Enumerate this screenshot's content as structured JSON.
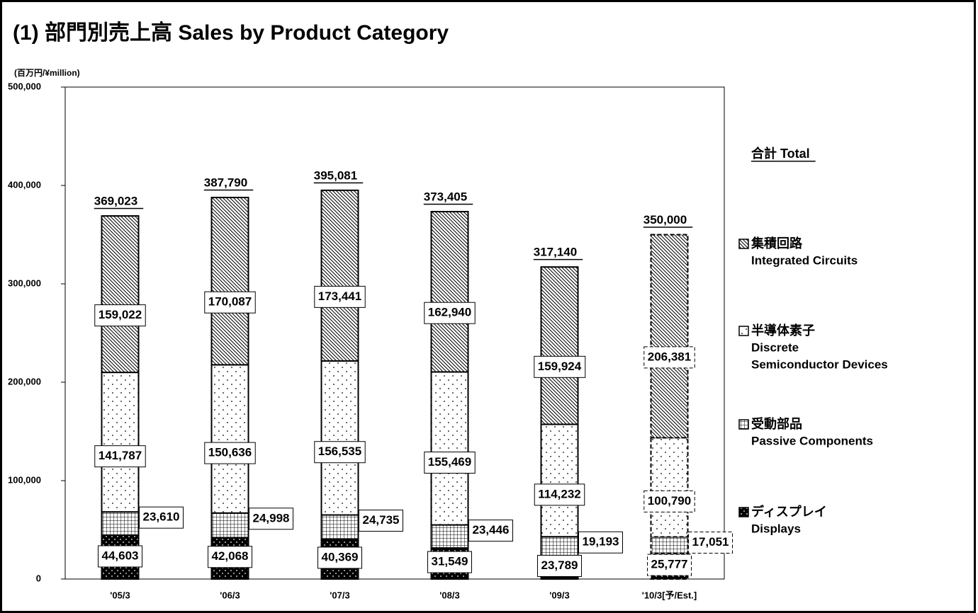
{
  "chart_data": {
    "type": "bar",
    "stacked": true,
    "title": "(1) 部門別売上高 Sales by Product Category",
    "y_axis_label": "(百万円/¥million)",
    "legend_title": "合計 Total",
    "categories": [
      "'05/3",
      "'06/3",
      "'07/3",
      "'08/3",
      "'09/3",
      "'10/3[予/Est.]"
    ],
    "dashed": [
      false,
      false,
      false,
      false,
      false,
      true
    ],
    "ylim": [
      0,
      500000
    ],
    "yticks": [
      0,
      {
        "value": 100000,
        "label": "100,000"
      },
      {
        "value": 200000,
        "label": "200,000"
      },
      {
        "value": 300000,
        "label": "300,000"
      },
      {
        "value": 400000,
        "label": "400,000"
      },
      {
        "value": 500000,
        "label": "500,000"
      }
    ],
    "series": [
      {
        "name": "ディスプレイ",
        "name_en": [
          "Displays"
        ],
        "color": "#000000",
        "pattern": "dark-dots",
        "values": [
          44603,
          42068,
          40369,
          31549,
          23789,
          25777
        ],
        "value_labels": [
          "44,603",
          "42,068",
          "40,369",
          "31,549",
          "23,789",
          "25,777"
        ]
      },
      {
        "name": "受動部品",
        "name_en": [
          "Passive Components"
        ],
        "color": "#000000",
        "pattern": "grid",
        "values": [
          23610,
          24998,
          24735,
          23446,
          19193,
          17051
        ],
        "value_labels": [
          "23,610",
          "24,998",
          "24,735",
          "23,446",
          "19,193",
          "17,051"
        ]
      },
      {
        "name": "半導体素子",
        "name_en": [
          "Discrete",
          "Semiconductor Devices"
        ],
        "color": "#000000",
        "pattern": "dots",
        "values": [
          141787,
          150636,
          156535,
          155469,
          114232,
          100790
        ],
        "value_labels": [
          "141,787",
          "150,636",
          "156,535",
          "155,469",
          "114,232",
          "100,790"
        ]
      },
      {
        "name": "集積回路",
        "name_en": [
          "Integrated Circuits"
        ],
        "color": "#000000",
        "pattern": "hatch",
        "values": [
          159022,
          170087,
          173441,
          162940,
          159924,
          206381
        ],
        "value_labels": [
          "159,022",
          "170,087",
          "173,441",
          "162,940",
          "159,924",
          "206,381"
        ]
      }
    ],
    "totals": [
      369023,
      387790,
      395081,
      373405,
      317140,
      350000
    ],
    "total_labels": [
      "369,023",
      "387,790",
      "395,081",
      "373,405",
      "317,140",
      "350,000"
    ]
  }
}
